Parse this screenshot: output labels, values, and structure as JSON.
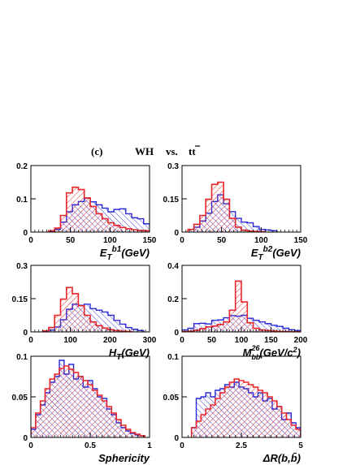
{
  "header": {
    "panel_tag": "(c)",
    "signal": "WH",
    "vs": "vs.",
    "background": "tt"
  },
  "colors": {
    "signal": "#e8262a",
    "background": "#2a2ad8",
    "signal_hatch": "#e8262a",
    "background_hatch": "#2a2ad8"
  },
  "chart_data": [
    {
      "type": "histogram",
      "xlabel": "E_T^{b1}(GeV)",
      "xlim": [
        0,
        150
      ],
      "ylim": [
        0,
        0.2
      ],
      "xticks": [
        "0",
        "50",
        "100",
        "150"
      ],
      "yticks": [
        "0",
        "0.1",
        "0.2"
      ],
      "bin_width": 7.5,
      "series": [
        {
          "role": "signal",
          "x0": 22.5,
          "values": [
            0.004,
            0.012,
            0.05,
            0.118,
            0.135,
            0.128,
            0.103,
            0.077,
            0.055,
            0.04,
            0.028,
            0.02,
            0.014,
            0.01,
            0.007,
            0.005,
            0.004,
            0.003
          ]
        },
        {
          "role": "background",
          "x0": 22.5,
          "values": [
            0.003,
            0.008,
            0.03,
            0.061,
            0.082,
            0.092,
            0.102,
            0.091,
            0.082,
            0.072,
            0.061,
            0.068,
            0.07,
            0.055,
            0.043,
            0.04,
            0.025,
            0.018
          ]
        }
      ]
    },
    {
      "type": "histogram",
      "xlabel": "E_T^{b2}(GeV)",
      "xlim": [
        0,
        150
      ],
      "ylim": [
        0,
        0.3
      ],
      "xticks": [
        "0",
        "50",
        "100",
        "150"
      ],
      "yticks": [
        "0",
        "0.15",
        "0.3"
      ],
      "bin_width": 7.5,
      "series": [
        {
          "role": "signal",
          "x0": 7.5,
          "values": [
            0.012,
            0.035,
            0.075,
            0.148,
            0.215,
            0.225,
            0.148,
            0.062,
            0.022,
            0.009,
            0.005,
            0.003,
            0.002
          ]
        },
        {
          "role": "background",
          "x0": 7.5,
          "values": [
            0.012,
            0.022,
            0.05,
            0.085,
            0.138,
            0.168,
            0.128,
            0.092,
            0.062,
            0.045,
            0.042,
            0.025,
            0.012,
            0.01,
            0.006
          ]
        }
      ]
    },
    {
      "type": "histogram",
      "xlabel": "H_T(GeV)",
      "xlim": [
        0,
        300
      ],
      "ylim": [
        0,
        0.3
      ],
      "xticks": [
        "0",
        "100",
        "200",
        "300"
      ],
      "yticks": [
        "0",
        "0.15",
        "0.3"
      ],
      "bin_width": 15,
      "series": [
        {
          "role": "signal",
          "x0": 30,
          "values": [
            0.005,
            0.02,
            0.075,
            0.148,
            0.2,
            0.172,
            0.118,
            0.075,
            0.045,
            0.028,
            0.017,
            0.01,
            0.006,
            0.003,
            0.002
          ]
        },
        {
          "role": "background",
          "x0": 30,
          "values": [
            0.003,
            0.008,
            0.022,
            0.055,
            0.102,
            0.125,
            0.12,
            0.125,
            0.105,
            0.098,
            0.09,
            0.075,
            0.052,
            0.035,
            0.02,
            0.012,
            0.006
          ]
        }
      ]
    },
    {
      "type": "histogram",
      "xlabel": "M_{bb}^{26}(GeV/c^2)",
      "xlim": [
        0,
        200
      ],
      "ylim": [
        0,
        0.4
      ],
      "xticks": [
        "0",
        "50",
        "100",
        "150",
        "200"
      ],
      "yticks": [
        "0",
        "0.2",
        "0.4"
      ],
      "bin_width": 10,
      "series": [
        {
          "role": "signal",
          "x0": 0,
          "values": [
            0.002,
            0.004,
            0.01,
            0.02,
            0.03,
            0.035,
            0.045,
            0.06,
            0.13,
            0.305,
            0.18,
            0.055,
            0.022,
            0.012,
            0.008,
            0.005,
            0.003,
            0.002,
            0.001,
            0.001
          ]
        },
        {
          "role": "background",
          "x0": 0,
          "values": [
            0.012,
            0.022,
            0.05,
            0.052,
            0.048,
            0.07,
            0.072,
            0.085,
            0.098,
            0.095,
            0.1,
            0.082,
            0.07,
            0.06,
            0.05,
            0.04,
            0.033,
            0.022,
            0.013,
            0.008
          ]
        }
      ]
    },
    {
      "type": "histogram",
      "xlabel": "Sphericity",
      "xlim": [
        0,
        1
      ],
      "ylim": [
        0,
        0.1
      ],
      "xticks": [
        "0",
        "0.5",
        "1"
      ],
      "yticks": [
        "0",
        "0.05",
        "0.1"
      ],
      "bin_width": 0.04,
      "series": [
        {
          "role": "signal",
          "x0": 0,
          "values": [
            0.012,
            0.03,
            0.045,
            0.06,
            0.072,
            0.078,
            0.085,
            0.088,
            0.084,
            0.08,
            0.075,
            0.07,
            0.065,
            0.058,
            0.052,
            0.045,
            0.038,
            0.03,
            0.022,
            0.015,
            0.01,
            0.006,
            0.004,
            0.002
          ]
        },
        {
          "role": "background",
          "x0": 0,
          "values": [
            0.01,
            0.028,
            0.04,
            0.055,
            0.068,
            0.075,
            0.095,
            0.078,
            0.09,
            0.072,
            0.075,
            0.062,
            0.07,
            0.06,
            0.05,
            0.048,
            0.035,
            0.028,
            0.018,
            0.012,
            0.008,
            0.005,
            0.003,
            0.002
          ]
        }
      ]
    },
    {
      "type": "histogram",
      "xlabel": "ΔR(b,b̄)",
      "xlim": [
        0,
        5
      ],
      "ylim": [
        0,
        0.1
      ],
      "xticks": [
        "0",
        "2.5",
        "5"
      ],
      "yticks": [
        "0",
        "0.05",
        "0.1"
      ],
      "bin_width": 0.2,
      "series": [
        {
          "role": "signal",
          "x0": 0.4,
          "values": [
            0.012,
            0.02,
            0.028,
            0.035,
            0.04,
            0.048,
            0.055,
            0.062,
            0.068,
            0.072,
            0.07,
            0.068,
            0.065,
            0.062,
            0.058,
            0.055,
            0.05,
            0.045,
            0.038,
            0.03,
            0.022,
            0.015,
            0.01
          ]
        },
        {
          "role": "background",
          "x0": 0.4,
          "values": [
            0.012,
            0.048,
            0.05,
            0.055,
            0.05,
            0.058,
            0.06,
            0.065,
            0.062,
            0.068,
            0.062,
            0.06,
            0.055,
            0.05,
            0.055,
            0.045,
            0.048,
            0.035,
            0.038,
            0.022,
            0.03,
            0.018,
            0.012
          ]
        }
      ]
    }
  ]
}
